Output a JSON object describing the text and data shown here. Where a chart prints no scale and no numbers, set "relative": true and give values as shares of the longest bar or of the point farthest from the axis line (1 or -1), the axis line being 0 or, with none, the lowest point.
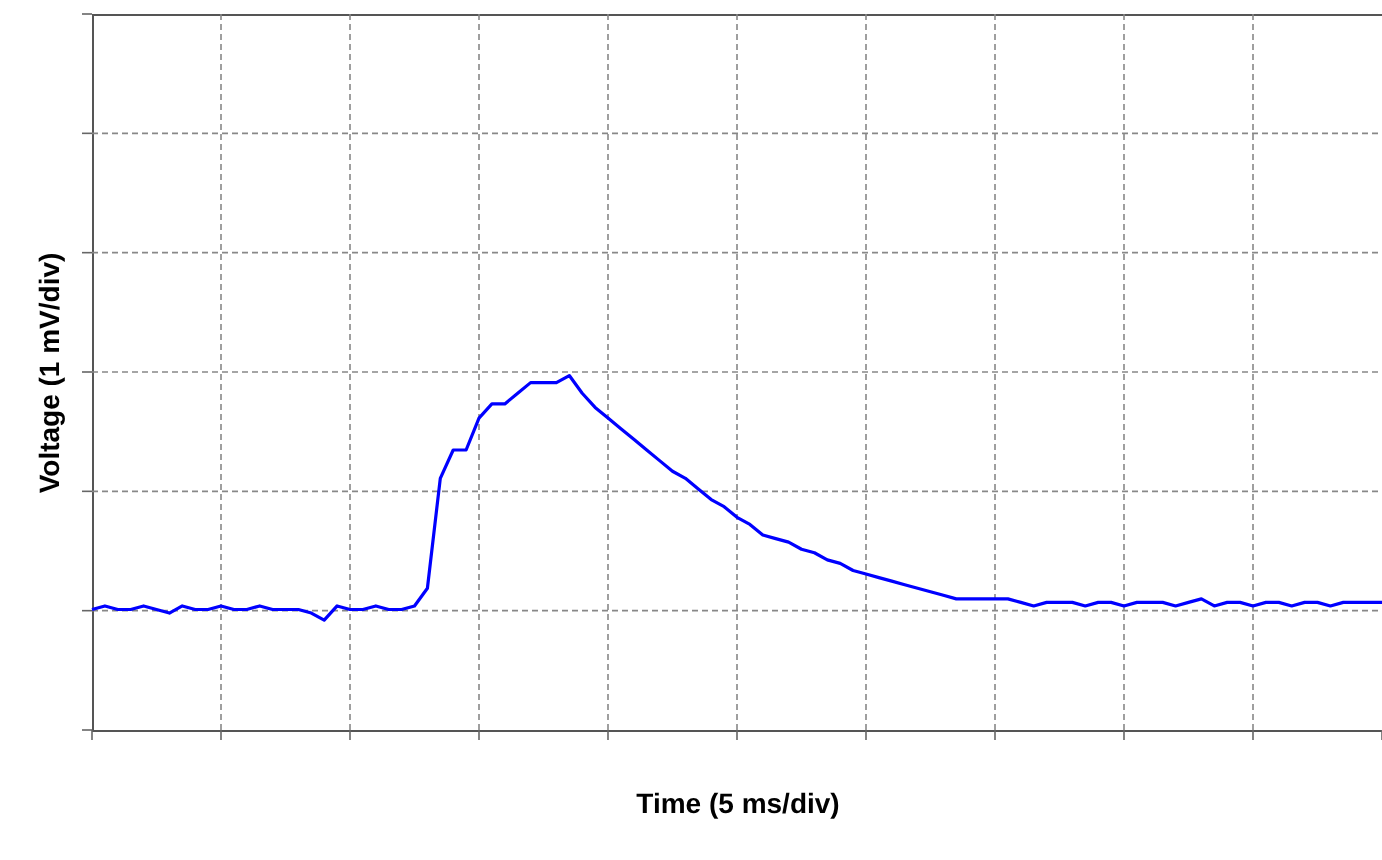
{
  "chart_data": {
    "type": "line",
    "relative": true,
    "xlabel": "Time (5 ms/div)",
    "ylabel": "Voltage (1 mV/div)",
    "categories": [
      null,
      null,
      null,
      null,
      null,
      null,
      null,
      null,
      null,
      null,
      null,
      null,
      null,
      null,
      null,
      null,
      null,
      null,
      null,
      null,
      null,
      null,
      null,
      null,
      null,
      null,
      null,
      null,
      null,
      null,
      null,
      null,
      null,
      null,
      null,
      null,
      null,
      null,
      null,
      null,
      null,
      null,
      null,
      null,
      null,
      null,
      null,
      null,
      null,
      null,
      null,
      null,
      null,
      null,
      null,
      null,
      null,
      null,
      null,
      null,
      null,
      null,
      null,
      null,
      null,
      null,
      null,
      null,
      null,
      null,
      null,
      null,
      null,
      null,
      null,
      null,
      null,
      null,
      null,
      null,
      null,
      null,
      null,
      null,
      null,
      null,
      null,
      null,
      null,
      null,
      null,
      null,
      null,
      null,
      null,
      null,
      null,
      null,
      null,
      null,
      null
    ],
    "series": [
      {
        "color": "#0000ff",
        "values": [
          0.34,
          0.35,
          0.34,
          0.34,
          0.35,
          0.34,
          0.33,
          0.35,
          0.34,
          0.34,
          0.35,
          0.34,
          0.34,
          0.35,
          0.34,
          0.34,
          0.34,
          0.33,
          0.31,
          0.35,
          0.34,
          0.34,
          0.35,
          0.34,
          0.34,
          0.35,
          0.4,
          0.71,
          0.79,
          0.79,
          0.88,
          0.92,
          0.92,
          0.95,
          0.98,
          0.98,
          0.98,
          1,
          0.95,
          0.91,
          0.88,
          0.85,
          0.82,
          0.79,
          0.76,
          0.73,
          0.71,
          0.68,
          0.65,
          0.63,
          0.6,
          0.58,
          0.55,
          0.54,
          0.53,
          0.51,
          0.5,
          0.48,
          0.47,
          0.45,
          0.44,
          0.43,
          0.42,
          0.41,
          0.4,
          0.39,
          0.38,
          0.37,
          0.37,
          0.37,
          0.37,
          0.37,
          0.36,
          0.35,
          0.36,
          0.36,
          0.36,
          0.35,
          0.36,
          0.36,
          0.35,
          0.36,
          0.36,
          0.36,
          0.35,
          0.36,
          0.37,
          0.35,
          0.36,
          0.36,
          0.35,
          0.36,
          0.36,
          0.35,
          0.36,
          0.36,
          0.35,
          0.36,
          0.36,
          0.36,
          0.36
        ]
      }
    ],
    "grid": true,
    "marker": "none",
    "line_style": "solid"
  }
}
